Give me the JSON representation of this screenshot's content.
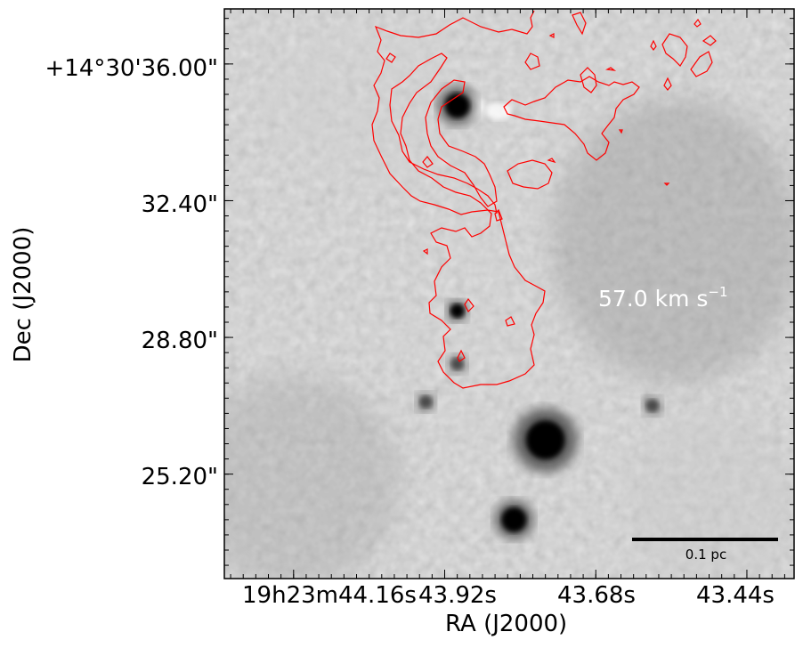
{
  "chart_data": {
    "type": "heatmap",
    "description_note": "",
    "xlabel": "RA (J2000)",
    "ylabel": "Dec (J2000)",
    "x_ticks": [
      {
        "label": "19h23m44.16s",
        "value_s": 44.16
      },
      {
        "label": "43.92s",
        "value_s": 43.92
      },
      {
        "label": "43.68s",
        "value_s": 43.68
      },
      {
        "label": "43.44s",
        "value_s": 43.44
      }
    ],
    "y_ticks": [
      {
        "label": "+14°30'36.00\"",
        "value_arcsec": 36.0
      },
      {
        "label": "32.40\"",
        "value_arcsec": 32.4
      },
      {
        "label": "28.80\"",
        "value_arcsec": 28.8
      },
      {
        "label": "25.20\"",
        "value_arcsec": 25.2
      }
    ],
    "annotation": "57.0 km s",
    "annotation_exp": "−1",
    "scalebar_label": "0.1 pc",
    "contour_color": "#ff0000",
    "colormap": "gray",
    "sources_dark": [
      {
        "ra_s": 43.9,
        "dec_arcsec": 34.9,
        "strength": "strong"
      },
      {
        "ra_s": 43.9,
        "dec_arcsec": 29.5,
        "strength": "medium"
      },
      {
        "ra_s": 43.9,
        "dec_arcsec": 28.1,
        "strength": "weak"
      },
      {
        "ra_s": 43.95,
        "dec_arcsec": 27.1,
        "strength": "weak"
      },
      {
        "ra_s": 43.76,
        "dec_arcsec": 26.1,
        "strength": "very strong"
      },
      {
        "ra_s": 43.59,
        "dec_arcsec": 27.0,
        "strength": "weak"
      },
      {
        "ra_s": 43.81,
        "dec_arcsec": 24.0,
        "strength": "strong"
      }
    ]
  }
}
